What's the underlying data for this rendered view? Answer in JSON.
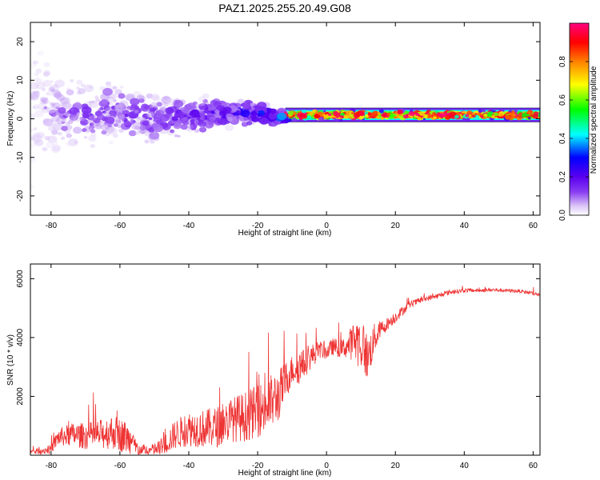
{
  "title": "PAZ1.2025.255.20.49.G08",
  "chart_data": [
    {
      "type": "heatmap",
      "xlabel": "Height of straight line (km)",
      "ylabel": "Frequency (Hz)",
      "xlim": [
        -86,
        62
      ],
      "ylim": [
        -25,
        25
      ],
      "xticks": [
        -80,
        -60,
        -40,
        -20,
        0,
        20,
        40,
        60
      ],
      "yticks": [
        -20,
        -10,
        0,
        10,
        20
      ],
      "colorbar": {
        "label": "Normalized spectral amplitude",
        "range": [
          0,
          1
        ],
        "ticks": [
          0.0,
          0.2,
          0.4,
          0.6,
          0.8
        ],
        "tick_labels": [
          "0.0",
          "0.2",
          "0.4",
          "0.6",
          "0.8"
        ],
        "colormap": [
          "#ffffff",
          "#d9c2f7",
          "#8a3ff2",
          "#5a00f0",
          "#0000ff",
          "#00ffff",
          "#00ff00",
          "#ffff00",
          "#ff8000",
          "#ff0000",
          "#ff0080"
        ]
      },
      "band_center_hz": [
        {
          "x": -84,
          "f": 2
        },
        {
          "x": -75,
          "f": 1
        },
        {
          "x": -65,
          "f": 1.5
        },
        {
          "x": -55,
          "f": 0.5
        },
        {
          "x": -45,
          "f": 0
        },
        {
          "x": -35,
          "f": 1
        },
        {
          "x": -25,
          "f": 1.5
        },
        {
          "x": -15,
          "f": 0.5
        },
        {
          "x": -10,
          "f": 1
        },
        {
          "x": 0,
          "f": 1
        },
        {
          "x": 20,
          "f": 1
        },
        {
          "x": 40,
          "f": 1
        },
        {
          "x": 62,
          "f": 1
        }
      ],
      "band_halfwidth_hz": [
        {
          "x": -84,
          "w": 22
        },
        {
          "x": -75,
          "w": 12
        },
        {
          "x": -60,
          "w": 9
        },
        {
          "x": -45,
          "w": 7
        },
        {
          "x": -30,
          "w": 5
        },
        {
          "x": -15,
          "w": 3
        },
        {
          "x": -10,
          "w": 1.5
        },
        {
          "x": 62,
          "w": 1.2
        }
      ],
      "peak_amplitude": [
        {
          "x": -84,
          "a": 0.12
        },
        {
          "x": -70,
          "a": 0.22
        },
        {
          "x": -50,
          "a": 0.25
        },
        {
          "x": -30,
          "a": 0.3
        },
        {
          "x": -12,
          "a": 0.45
        },
        {
          "x": -10,
          "a": 0.9
        },
        {
          "x": 62,
          "a": 1.0
        }
      ]
    },
    {
      "type": "line",
      "xlabel": "Height of straight line (km)",
      "ylabel": "SNR (10 * v/v)",
      "xlim": [
        -86,
        62
      ],
      "ylim": [
        0,
        6500
      ],
      "xticks": [
        -80,
        -60,
        -40,
        -20,
        0,
        20,
        40,
        60
      ],
      "yticks": [
        2000,
        4000,
        6000
      ],
      "series": [
        {
          "name": "SNR",
          "color": "#ee3333",
          "x": [
            -86,
            -80,
            -78,
            -74,
            -70,
            -66,
            -62,
            -58,
            -55,
            -52,
            -48,
            -44,
            -40,
            -36,
            -32,
            -28,
            -24,
            -20,
            -17,
            -14,
            -12,
            -10,
            -8,
            -6,
            -4,
            -2,
            0,
            2,
            4,
            6,
            8,
            10,
            12,
            14,
            16,
            18,
            20,
            24,
            28,
            32,
            36,
            40,
            44,
            48,
            52,
            56,
            60,
            62
          ],
          "y": [
            100,
            200,
            600,
            700,
            650,
            700,
            800,
            600,
            200,
            150,
            250,
            700,
            900,
            900,
            950,
            1200,
            1300,
            1500,
            1700,
            2000,
            2500,
            2900,
            3000,
            3150,
            3400,
            3600,
            3500,
            3700,
            3600,
            3700,
            3900,
            3800,
            3300,
            4000,
            4300,
            4500,
            4700,
            5100,
            5300,
            5400,
            5550,
            5600,
            5600,
            5620,
            5600,
            5580,
            5500,
            5450
          ],
          "noise": [
            80,
            150,
            300,
            400,
            450,
            500,
            600,
            550,
            300,
            150,
            300,
            500,
            600,
            650,
            700,
            750,
            850,
            900,
            1000,
            900,
            700,
            500,
            600,
            450,
            400,
            300,
            250,
            300,
            300,
            400,
            700,
            900,
            800,
            500,
            300,
            200,
            200,
            120,
            100,
            90,
            80,
            70,
            60,
            60,
            60,
            60,
            70,
            70
          ]
        }
      ]
    }
  ]
}
